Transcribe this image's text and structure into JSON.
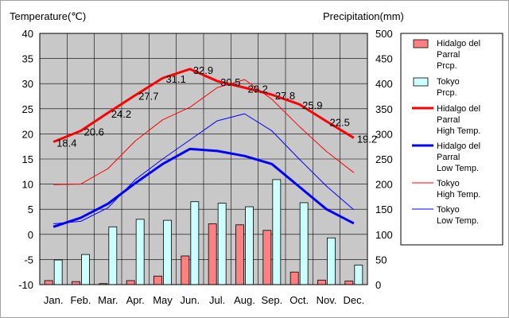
{
  "chart_data": {
    "type": "bar+line",
    "title": "",
    "categories": [
      "Jan.",
      "Feb.",
      "Mar.",
      "Apr.",
      "May",
      "Jun.",
      "Jul.",
      "Aug.",
      "Sep.",
      "Oct.",
      "Nov.",
      "Dec."
    ],
    "left_axis": {
      "label": "Temperature(℃)",
      "min": -10,
      "max": 40,
      "step": 5
    },
    "right_axis": {
      "label": "Precipitation(mm)",
      "min": 0,
      "max": 500,
      "step": 50
    },
    "grid": true,
    "legend_position": "right",
    "bar_series": [
      {
        "name_lines": [
          "Hidalgo del",
          "Parral",
          "Prcp."
        ],
        "color": "#ff8080",
        "values": [
          8,
          6,
          2,
          8,
          17,
          57,
          121,
          119,
          108,
          25,
          9,
          7
        ]
      },
      {
        "name_lines": [
          "Tokyo",
          "Prcp."
        ],
        "color": "#ccffff",
        "values": [
          49,
          60,
          115,
          130,
          128,
          165,
          162,
          155,
          209,
          163,
          93,
          39
        ]
      }
    ],
    "line_series": [
      {
        "name_lines": [
          "Hidalgo del",
          "Parral",
          "High Temp."
        ],
        "color": "#ff0000",
        "width": 3,
        "values": [
          18.4,
          20.6,
          24.2,
          27.7,
          31.1,
          32.9,
          30.5,
          29.2,
          27.8,
          25.9,
          22.5,
          19.2
        ],
        "labels": [
          "18.4",
          "20.6",
          "24.2",
          "27.7",
          "31.1",
          "32.9",
          "30.5",
          "29.2",
          "27.8",
          "25.9",
          "22.5",
          "19.2"
        ]
      },
      {
        "name_lines": [
          "Hidalgo del",
          "Parral",
          "Low Temp."
        ],
        "color": "#0000ff",
        "width": 3,
        "values": [
          1.5,
          3.3,
          6.1,
          10.2,
          14.0,
          17.0,
          16.6,
          15.6,
          14.0,
          9.5,
          5.0,
          2.2
        ]
      },
      {
        "name_lines": [
          "Tokyo",
          "High Temp."
        ],
        "color": "#ff0000",
        "width": 1,
        "values": [
          9.9,
          10.0,
          13.1,
          18.6,
          22.8,
          25.3,
          29.2,
          30.8,
          26.9,
          21.5,
          16.5,
          12.3
        ]
      },
      {
        "name_lines": [
          "Tokyo",
          "Low Temp."
        ],
        "color": "#0000ff",
        "width": 1,
        "values": [
          2.1,
          2.6,
          5.3,
          10.9,
          15.0,
          18.8,
          22.6,
          24.0,
          20.6,
          15.0,
          9.6,
          4.9
        ]
      }
    ]
  }
}
